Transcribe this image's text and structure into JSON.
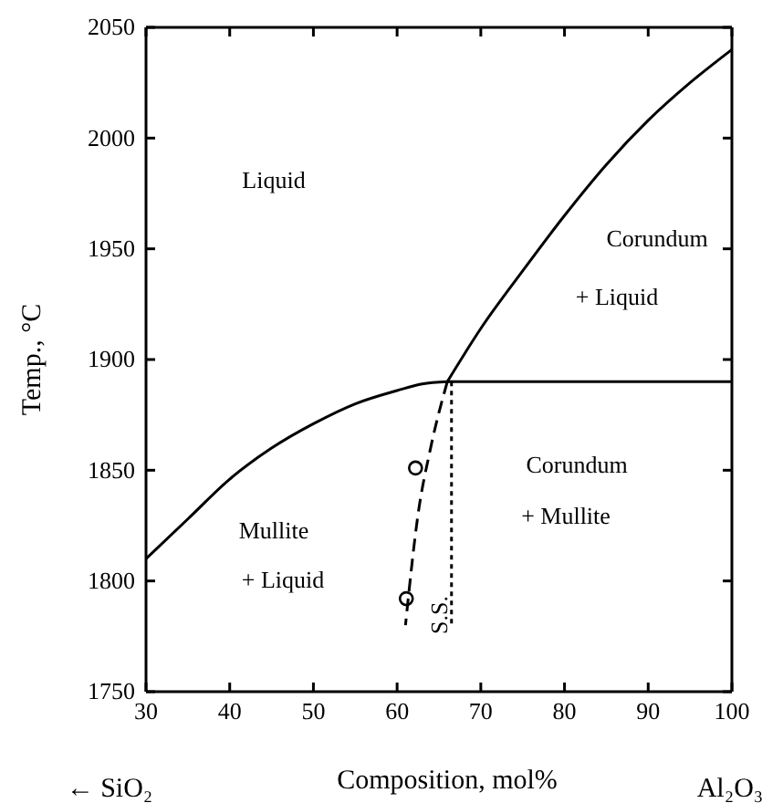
{
  "chart_data": {
    "type": "line",
    "xlabel": "Composition, mol%",
    "ylabel": "Temp., °C",
    "xlim": [
      30,
      100
    ],
    "ylim": [
      1750,
      2050
    ],
    "xticks": [
      30,
      40,
      50,
      60,
      70,
      80,
      90,
      100
    ],
    "yticks": [
      1750,
      1800,
      1850,
      1900,
      1950,
      2000,
      2050
    ],
    "grid": false,
    "marker": "none",
    "series": [
      {
        "color": "#000000",
        "line_style": "solid",
        "x": [
          30,
          35,
          40,
          45,
          50,
          55,
          60,
          63,
          66
        ],
        "values": [
          1810,
          1828,
          1846,
          1860,
          1871,
          1880,
          1886,
          1889,
          1890
        ]
      },
      {
        "color": "#000000",
        "line_style": "solid",
        "x": [
          66,
          70,
          75,
          80,
          85,
          90,
          95,
          100
        ],
        "values": [
          1890,
          1914,
          1940,
          1965,
          1988,
          2008,
          2025,
          2040
        ]
      },
      {
        "color": "#000000",
        "line_style": "solid",
        "x": [
          66,
          100
        ],
        "values": [
          1890,
          1890
        ]
      },
      {
        "color": "#000000",
        "line_style": "dashed",
        "x": [
          66,
          64,
          62.5,
          61
        ],
        "values": [
          1890,
          1860,
          1830,
          1780
        ]
      },
      {
        "color": "#000000",
        "line_style": "dotted",
        "x": [
          66.5,
          66.5
        ],
        "values": [
          1890,
          1780
        ]
      },
      {
        "type": "scatter",
        "marker": "circle",
        "color": "#000000",
        "x": [
          62.2,
          61.1
        ],
        "values": [
          1851,
          1792
        ]
      }
    ],
    "annotations": [
      "Liquid",
      "Corundum",
      "+ Liquid",
      "Mullite",
      "+ Liquid",
      "Corundum",
      "+ Mullite",
      "S.S.",
      "← SiO₂",
      "Al₂O₃"
    ]
  }
}
